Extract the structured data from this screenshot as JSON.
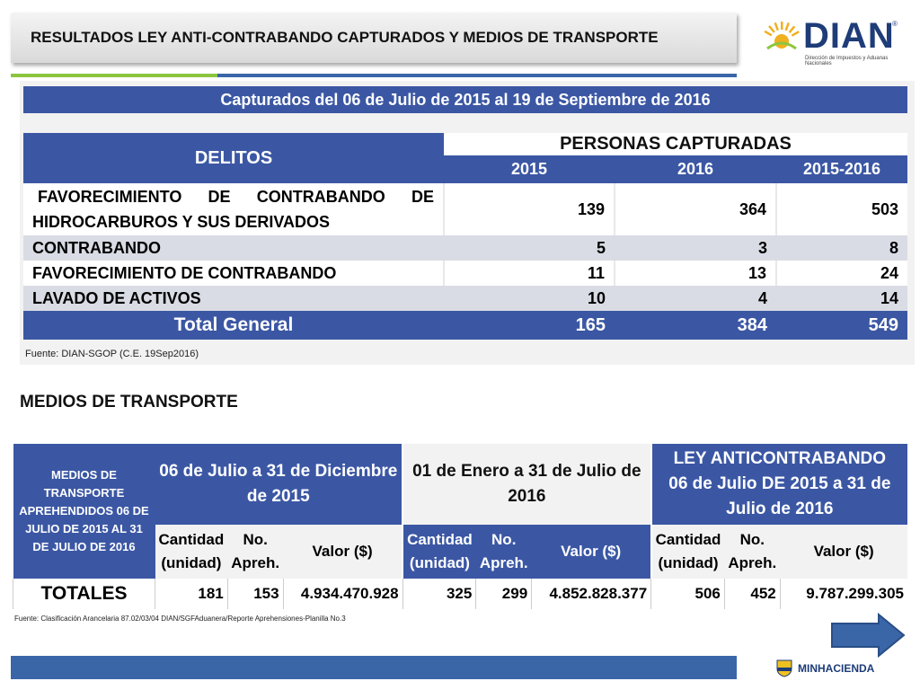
{
  "title": "RESULTADOS LEY ANTI-CONTRABANDO CAPTURADOS Y MEDIOS DE TRANSPORTE",
  "logo": {
    "name": "DIAN",
    "reg": "®",
    "subtitle": "Dirección de Impuestos y Aduanas Nacionales",
    "icon": "sun-icon"
  },
  "captured": {
    "caption": "Capturados del 06 de Julio de 2015 al 19 de Septiembre de 2016",
    "col_delitos": "DELITOS",
    "col_personas": "PERSONAS CAPTURADAS",
    "years": [
      "2015",
      "2016",
      "2015-2016"
    ],
    "rows": [
      {
        "label_line1": "FAVORECIMIENTO DE CONTRABANDO DE",
        "label_line2": "HIDROCARBUROS Y SUS DERIVADOS",
        "v2015": "139",
        "v2016": "364",
        "vtotal": "503"
      },
      {
        "label": "CONTRABANDO",
        "v2015": "5",
        "v2016": "3",
        "vtotal": "8"
      },
      {
        "label": "FAVORECIMIENTO DE CONTRABANDO",
        "v2015": "11",
        "v2016": "13",
        "vtotal": "24"
      },
      {
        "label": "LAVADO DE ACTIVOS",
        "v2015": "10",
        "v2016": "4",
        "vtotal": "14"
      }
    ],
    "total": {
      "label": "Total General",
      "v2015": "165",
      "v2016": "384",
      "vtotal": "549"
    },
    "source": "Fuente: DIAN-SGOP (C.E. 19Sep2016)"
  },
  "medios": {
    "section_title": "MEDIOS DE TRANSPORTE",
    "header_left": "MEDIOS DE TRANSPORTE APREHENDIDOS 06 DE JULIO DE 2015 AL 31 DE JULIO DE 2016",
    "period1": "06 de Julio a 31 de Diciembre de 2015",
    "period2": "01 de Enero a 31 de Julio de 2016",
    "period3_line1": "LEY ANTICONTRABANDO",
    "period3_line2": "06 de Julio DE 2015 a 31 de Julio de 2016",
    "sub_cantidad": "Cantidad (unidad)",
    "sub_apreh": "No. Apreh.",
    "sub_valor": "Valor ($)",
    "totales_label": "TOTALES",
    "totales": [
      "181",
      "153",
      "4.934.470.928",
      "325",
      "299",
      "4.852.828.377",
      "506",
      "452",
      "9.787.299.305"
    ],
    "source": "Fuente: Clasificación Arancelaria 87.02/03/04 DIAN/SGFAduanera/Reporte Aprehensiones-Planilla No.3"
  },
  "footer": {
    "ministry": "MINHACIENDA",
    "arrow_icon": "next-arrow-icon"
  }
}
